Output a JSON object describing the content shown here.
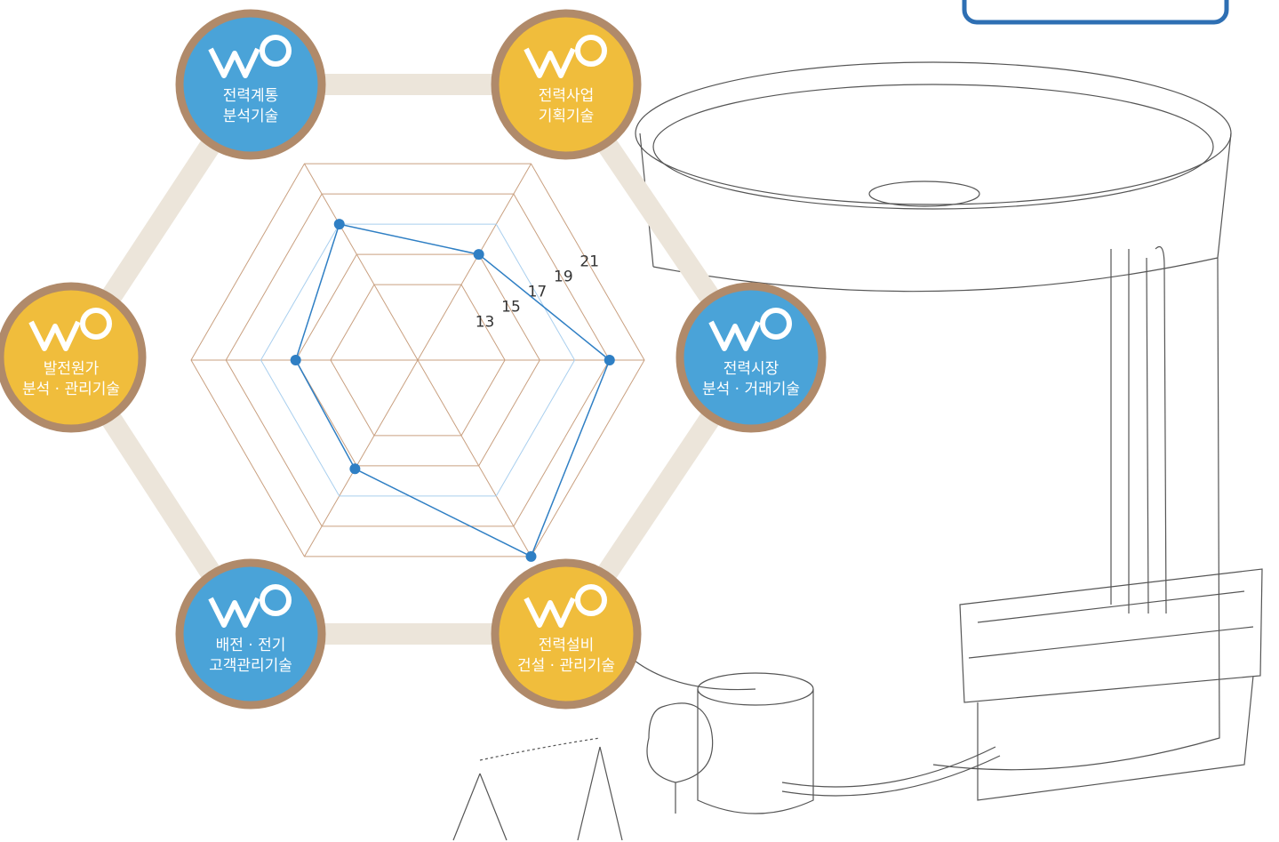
{
  "chart_data": {
    "type": "radar",
    "categories": [
      "전력시장\n분석 · 거래기술",
      "전력사업\n기획기술",
      "전력계통\n분석기술",
      "발전원가\n분석 · 관리기술",
      "배전 · 전기\n고객관리기술",
      "전력설비\n건설 · 관리기술"
    ],
    "category_colors": [
      "#4aa3d8",
      "#f0bd3c",
      "#4aa3d8",
      "#f0bd3c",
      "#4aa3d8",
      "#f0bd3c"
    ],
    "values": [
      19,
      15,
      17,
      15,
      15.2,
      21
    ],
    "color": "#2f7fc4",
    "rlim": [
      8,
      21
    ],
    "rticks": [
      13,
      15,
      17,
      19,
      21
    ],
    "grid": true
  }
}
